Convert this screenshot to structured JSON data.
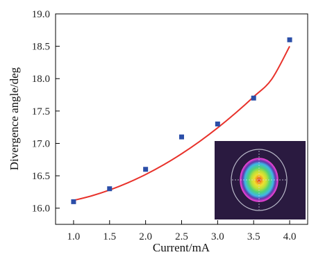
{
  "chart_data": {
    "type": "scatter",
    "xlabel": "Current/mA",
    "ylabel": "Divergence angle/deg",
    "xlim": [
      0.75,
      4.25
    ],
    "ylim": [
      15.75,
      19.0
    ],
    "x_ticks": [
      "1.0",
      "1.5",
      "2.0",
      "2.5",
      "3.0",
      "3.5",
      "4.0"
    ],
    "y_ticks": [
      "16.0",
      "16.5",
      "17.0",
      "17.5",
      "18.0",
      "18.5",
      "19.0"
    ],
    "grid": false,
    "series": [
      {
        "kind": "points",
        "marker": "square",
        "color": "#2b4ea8",
        "x": [
          1.0,
          1.5,
          2.0,
          2.5,
          3.0,
          3.5,
          4.0
        ],
        "y": [
          16.1,
          16.3,
          16.6,
          17.1,
          17.3,
          17.7,
          18.6
        ]
      },
      {
        "kind": "fit",
        "color": "#e8322b",
        "x": [
          1.0,
          1.25,
          1.5,
          1.75,
          2.0,
          2.25,
          2.5,
          2.75,
          3.0,
          3.25,
          3.5,
          3.75,
          4.0
        ],
        "y": [
          16.12,
          16.19,
          16.28,
          16.39,
          16.52,
          16.67,
          16.84,
          17.03,
          17.24,
          17.47,
          17.72,
          17.99,
          18.5
        ]
      }
    ],
    "inset": {
      "description": "beam profile",
      "background": "#2a1a40",
      "ring_color": "#b9b9c9",
      "rim_color": "#e040d0",
      "core_colors": [
        "#3fb6e8",
        "#4fd07a",
        "#b8e03a",
        "#f0e030",
        "#f08a20",
        "#e02020"
      ]
    }
  }
}
